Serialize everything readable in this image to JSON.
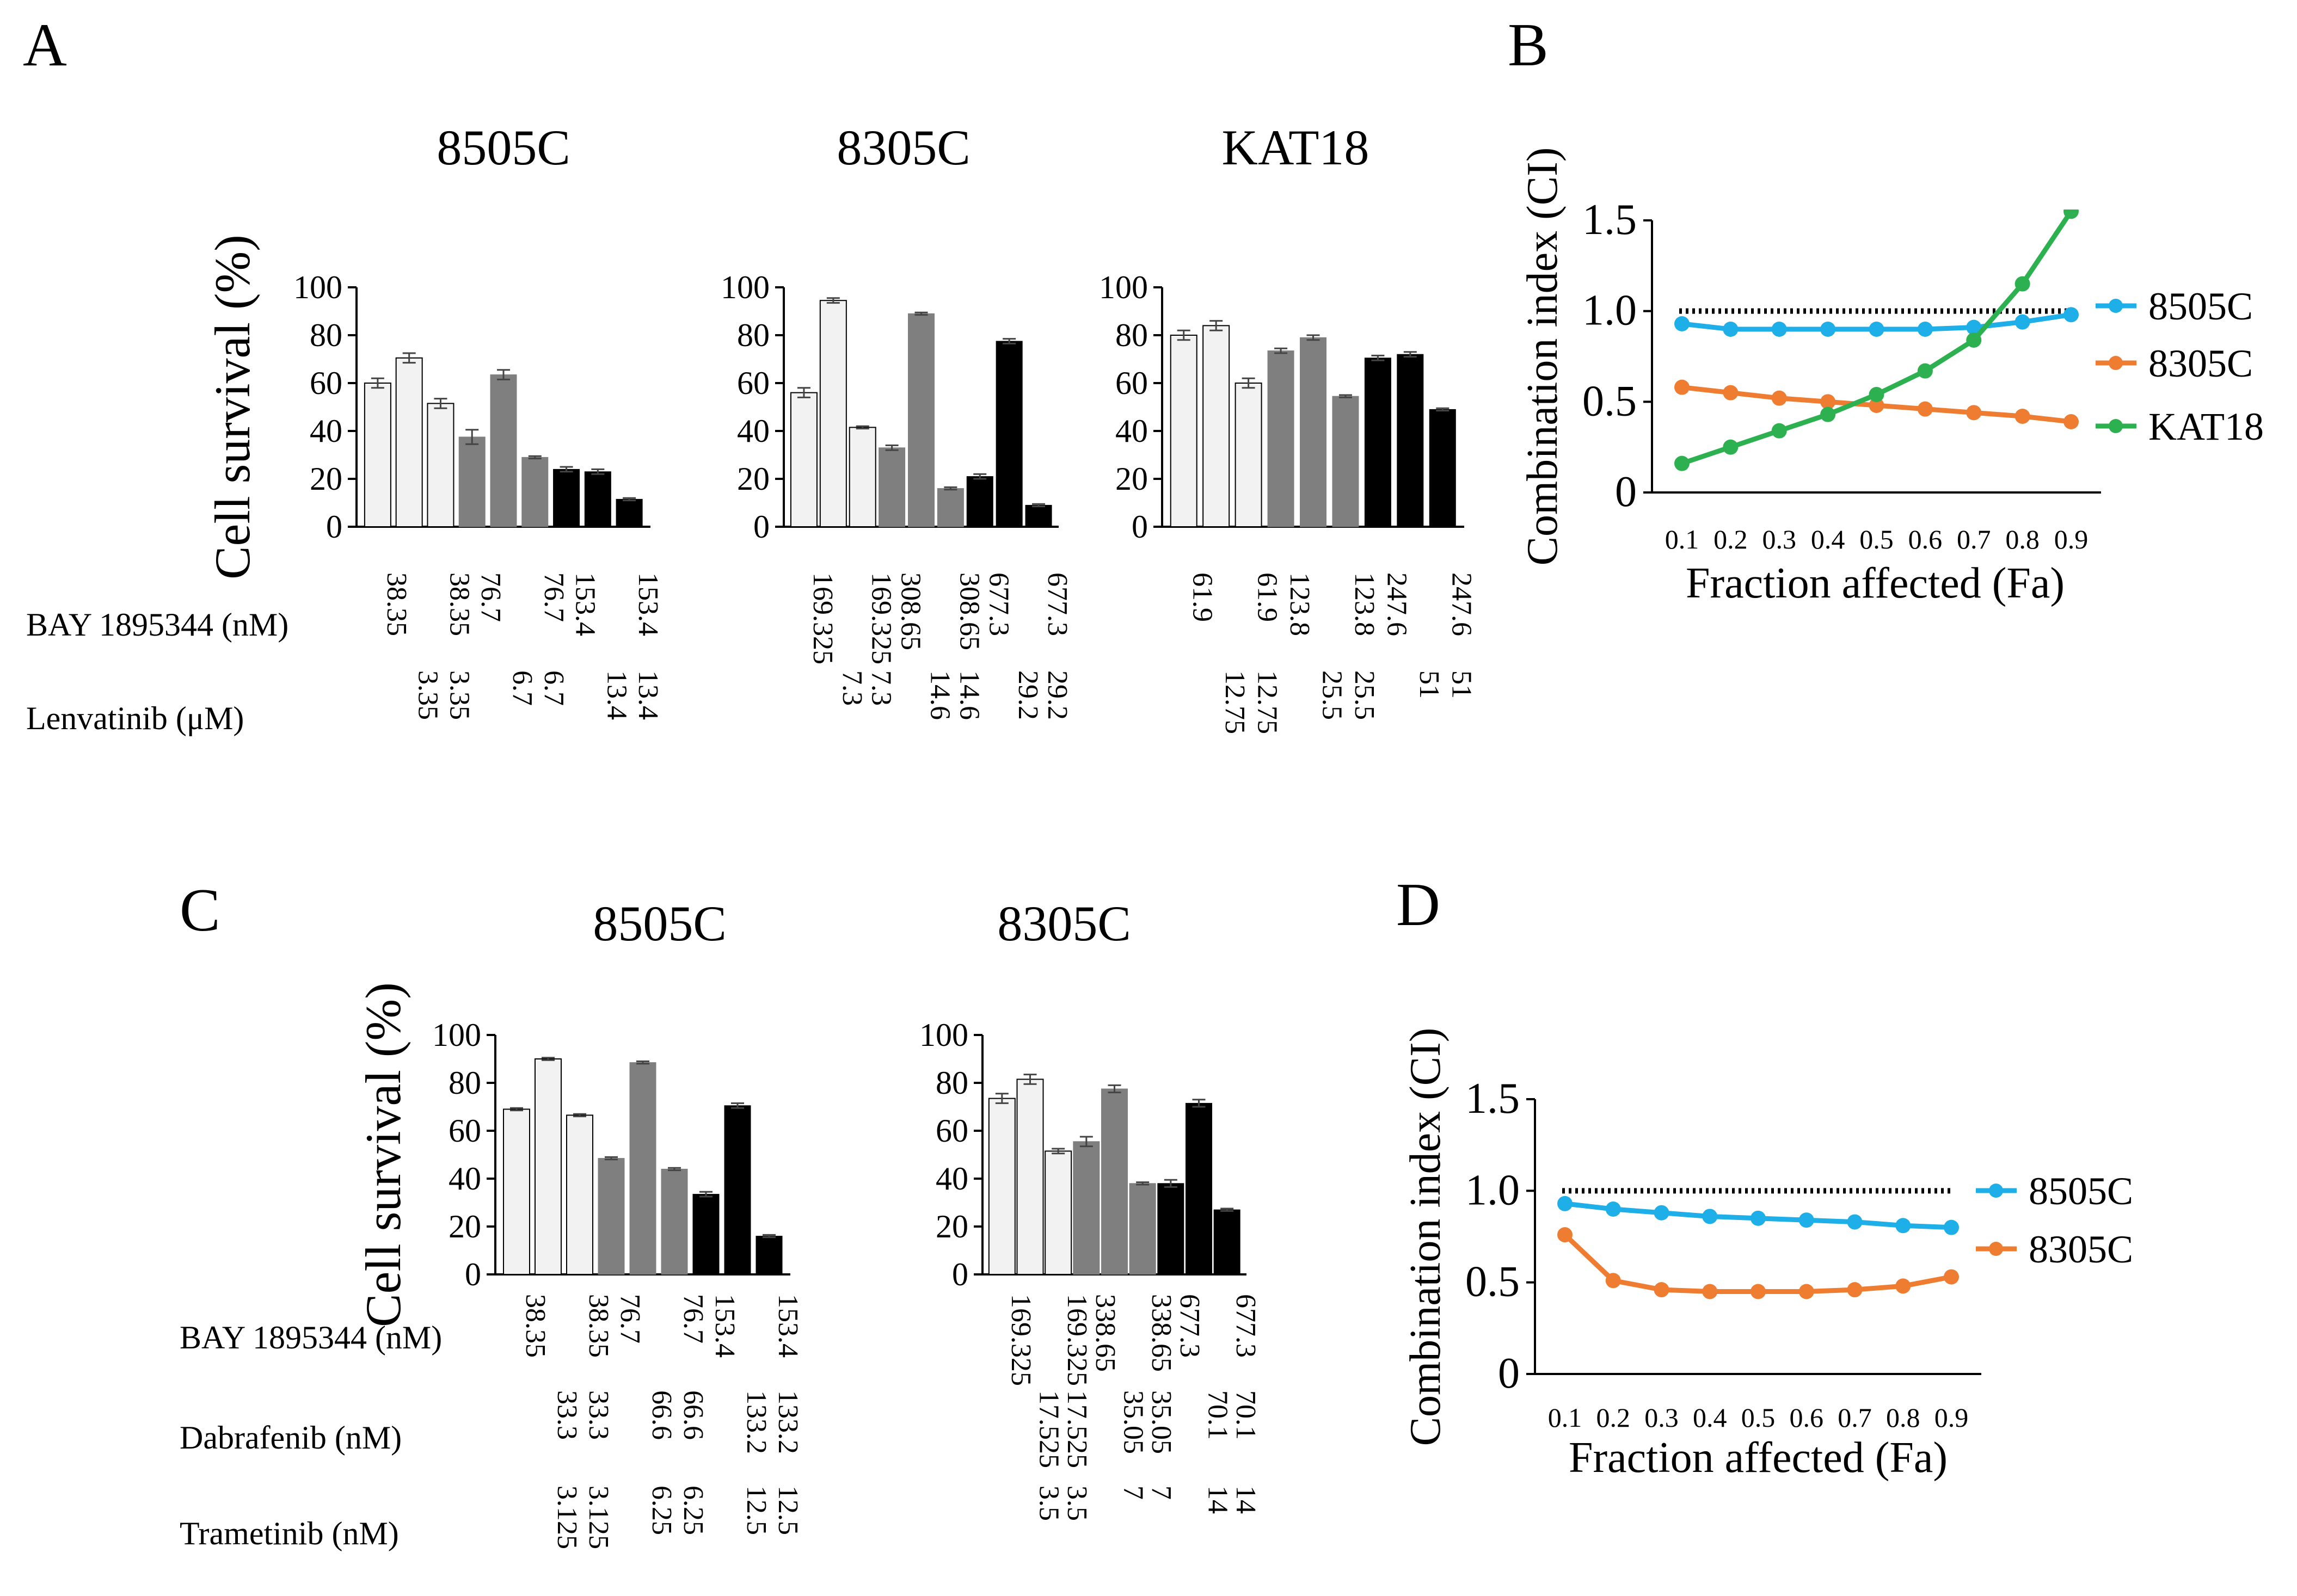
{
  "panel_labels": {
    "A": "A",
    "B": "B",
    "C": "C",
    "D": "D"
  },
  "colors": {
    "light": "#f2f2f2",
    "medium": "#7f7f7f",
    "dark": "#000000",
    "cyan": "#1eaee8",
    "orange": "#ee7d31",
    "green": "#2db04f",
    "reference": "#000000"
  },
  "chart_data": [
    {
      "panel": "A",
      "type": "bar",
      "title": "8505C",
      "ylabel": "Cell survival (%)",
      "ylim": [
        0,
        100
      ],
      "yticks": [
        "0",
        "20",
        "40",
        "60",
        "80",
        "100"
      ],
      "values": [
        60,
        70.5,
        51.5,
        37.5,
        63.5,
        29,
        24,
        23,
        11.5
      ],
      "errors": [
        2,
        2,
        2,
        3,
        2,
        0.5,
        1,
        1,
        0.5
      ],
      "bar_colors": [
        "light",
        "light",
        "light",
        "medium",
        "medium",
        "medium",
        "dark",
        "dark",
        "dark"
      ],
      "rows": [
        {
          "label": "BAY 1895344 (nM)",
          "values": [
            "38.35",
            "",
            "38.35",
            "76.7",
            "",
            "76.7",
            "153.4",
            "",
            "153.4"
          ]
        },
        {
          "label": "Lenvatinib (μM)",
          "values": [
            "",
            "3.35",
            "3.35",
            "",
            "6.7",
            "6.7",
            "",
            "13.4",
            "13.4"
          ]
        }
      ]
    },
    {
      "panel": "A",
      "type": "bar",
      "title": "8305C",
      "ylabel": "",
      "ylim": [
        0,
        100
      ],
      "yticks": [
        "0",
        "20",
        "40",
        "60",
        "80",
        "100"
      ],
      "values": [
        56,
        94.5,
        41.5,
        33,
        89,
        16,
        21,
        77.5,
        9
      ],
      "errors": [
        2,
        1,
        0.5,
        1,
        0.5,
        0.5,
        1,
        1,
        0.5
      ],
      "bar_colors": [
        "light",
        "light",
        "light",
        "medium",
        "medium",
        "medium",
        "dark",
        "dark",
        "dark"
      ],
      "rows": [
        {
          "label": "",
          "values": [
            "169.325",
            "",
            "169.325",
            "308.65",
            "",
            "308.65",
            "677.3",
            "",
            "677.3"
          ]
        },
        {
          "label": "",
          "values": [
            "",
            "7.3",
            "7.3",
            "",
            "14.6",
            "14.6",
            "",
            "29.2",
            "29.2"
          ]
        }
      ]
    },
    {
      "panel": "A",
      "type": "bar",
      "title": "KAT18",
      "ylabel": "",
      "ylim": [
        0,
        100
      ],
      "yticks": [
        "0",
        "20",
        "40",
        "60",
        "80",
        "100"
      ],
      "values": [
        80,
        84,
        60,
        73.5,
        79,
        54.5,
        70.5,
        72,
        49
      ],
      "errors": [
        2,
        2,
        2,
        1,
        1,
        0.5,
        1,
        1,
        0.5
      ],
      "bar_colors": [
        "light",
        "light",
        "light",
        "medium",
        "medium",
        "medium",
        "dark",
        "dark",
        "dark"
      ],
      "rows": [
        {
          "label": "",
          "values": [
            "61.9",
            "",
            "61.9",
            "123.8",
            "",
            "123.8",
            "247.6",
            "",
            "247.6"
          ]
        },
        {
          "label": "",
          "values": [
            "",
            "12.75",
            "12.75",
            "",
            "25.5",
            "25.5",
            "",
            "51",
            "51"
          ]
        }
      ]
    },
    {
      "panel": "B",
      "type": "line",
      "xlabel": "Fraction affected (Fa)",
      "ylabel": "Combination index (CI)",
      "x": [
        0.1,
        0.2,
        0.3,
        0.4,
        0.5,
        0.6,
        0.7,
        0.8,
        0.9
      ],
      "xticks": [
        "0.1",
        "0.2",
        "0.3",
        "0.4",
        "0.5",
        "0.6",
        "0.7",
        "0.8",
        "0.9"
      ],
      "ylim": [
        0,
        1.5
      ],
      "yticks": [
        "0",
        "0.5",
        "1.0",
        "1.5"
      ],
      "reference_y": 1.0,
      "series": [
        {
          "name": "8505C",
          "color": "cyan",
          "values": [
            0.93,
            0.9,
            0.9,
            0.9,
            0.9,
            0.9,
            0.91,
            0.94,
            0.98
          ]
        },
        {
          "name": "8305C",
          "color": "orange",
          "values": [
            0.58,
            0.55,
            0.52,
            0.5,
            0.48,
            0.46,
            0.44,
            0.42,
            0.39
          ]
        },
        {
          "name": "KAT18",
          "color": "green",
          "values": [
            0.16,
            0.25,
            0.34,
            0.43,
            0.54,
            0.67,
            0.84,
            1.15,
            1.55
          ]
        }
      ]
    },
    {
      "panel": "C",
      "type": "bar",
      "title": "8505C",
      "ylabel": "Cell survival (%)",
      "ylim": [
        0,
        100
      ],
      "yticks": [
        "0",
        "20",
        "40",
        "60",
        "80",
        "100"
      ],
      "values": [
        69,
        90,
        66.5,
        48.5,
        88.5,
        44,
        33.5,
        70.5,
        16
      ],
      "errors": [
        0.5,
        0.5,
        0.5,
        0.5,
        0.5,
        0.5,
        1,
        1,
        0.5
      ],
      "bar_colors": [
        "light",
        "light",
        "light",
        "medium",
        "medium",
        "medium",
        "dark",
        "dark",
        "dark"
      ],
      "rows": [
        {
          "label": "BAY 1895344 (nM)",
          "values": [
            "38.35",
            "",
            "38.35",
            "76.7",
            "",
            "76.7",
            "153.4",
            "",
            "153.4"
          ]
        },
        {
          "label": "Dabrafenib (nM)",
          "values": [
            "",
            "33.3",
            "33.3",
            "",
            "66.6",
            "66.6",
            "",
            "133.2",
            "133.2"
          ]
        },
        {
          "label": "Trametinib (nM)",
          "values": [
            "",
            "3.125",
            "3.125",
            "",
            "6.25",
            "6.25",
            "",
            "12.5",
            "12.5"
          ]
        }
      ]
    },
    {
      "panel": "C",
      "type": "bar",
      "title": "8305C",
      "ylabel": "",
      "ylim": [
        0,
        100
      ],
      "yticks": [
        "0",
        "20",
        "40",
        "60",
        "80",
        "100"
      ],
      "values": [
        73.5,
        81.5,
        51.5,
        55.5,
        77.5,
        38,
        38,
        71.5,
        27
      ],
      "errors": [
        2,
        2,
        1,
        2,
        1.5,
        0.5,
        1.5,
        1.5,
        0.5
      ],
      "bar_colors": [
        "light",
        "light",
        "light",
        "medium",
        "medium",
        "medium",
        "dark",
        "dark",
        "dark"
      ],
      "rows": [
        {
          "label": "",
          "values": [
            "169.325",
            "",
            "169.325",
            "338.65",
            "",
            "338.65",
            "677.3",
            "",
            "677.3"
          ]
        },
        {
          "label": "",
          "values": [
            "",
            "17.525",
            "17.525",
            "",
            "35.05",
            "35.05",
            "",
            "70.1",
            "70.1"
          ]
        },
        {
          "label": "",
          "values": [
            "",
            "3.5",
            "3.5",
            "",
            "7",
            "7",
            "",
            "14",
            "14"
          ]
        }
      ]
    },
    {
      "panel": "D",
      "type": "line",
      "xlabel": "Fraction affected (Fa)",
      "ylabel": "Combination index (CI)",
      "x": [
        0.1,
        0.2,
        0.3,
        0.4,
        0.5,
        0.6,
        0.7,
        0.8,
        0.9
      ],
      "xticks": [
        "0.1",
        "0.2",
        "0.3",
        "0.4",
        "0.5",
        "0.6",
        "0.7",
        "0.8",
        "0.9"
      ],
      "ylim": [
        0,
        1.5
      ],
      "yticks": [
        "0",
        "0.5",
        "1.0",
        "1.5"
      ],
      "reference_y": 1.0,
      "series": [
        {
          "name": "8505C",
          "color": "cyan",
          "values": [
            0.93,
            0.9,
            0.88,
            0.86,
            0.85,
            0.84,
            0.83,
            0.81,
            0.8
          ]
        },
        {
          "name": "8305C",
          "color": "orange",
          "values": [
            0.76,
            0.51,
            0.46,
            0.45,
            0.45,
            0.45,
            0.46,
            0.48,
            0.53
          ]
        }
      ]
    }
  ]
}
